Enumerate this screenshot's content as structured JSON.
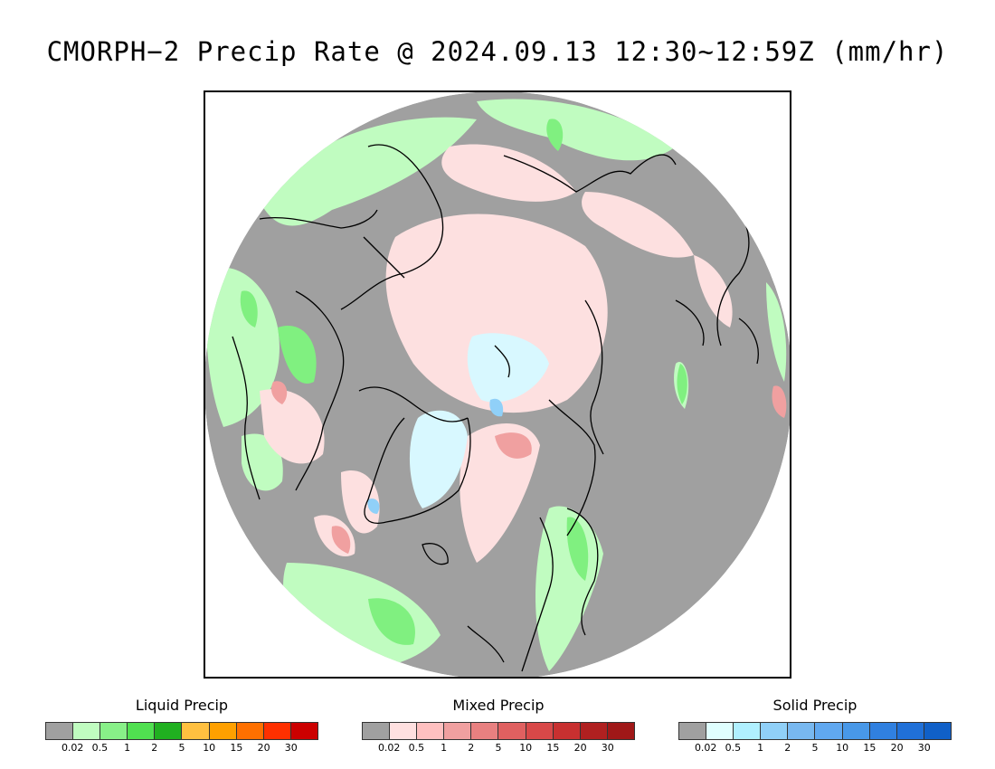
{
  "title": "CMORPH−2 Precip Rate @ 2024.09.13 12:30~12:59Z (mm/hr)",
  "map": {
    "projection": "north-polar-stereographic",
    "ocean_color": "#a0a0a0",
    "coastline_color": "#000000",
    "regions": [
      {
        "name": "light-liquid",
        "color": "#c0fcc0"
      },
      {
        "name": "moderate-liquid",
        "color": "#80f080"
      },
      {
        "name": "light-mixed",
        "color": "#fde0e0"
      },
      {
        "name": "moderate-mixed",
        "color": "#f0a0a0"
      },
      {
        "name": "light-solid",
        "color": "#d8f8ff"
      },
      {
        "name": "moderate-solid",
        "color": "#90d0f8"
      }
    ]
  },
  "legends": [
    {
      "title": "Liquid Precip",
      "colors": [
        "#a0a0a0",
        "#c0fcc0",
        "#88f088",
        "#50e050",
        "#20b020",
        "#ffc040",
        "#ffa000",
        "#ff7000",
        "#ff3000",
        "#cc0000"
      ],
      "ticks": [
        "0.02",
        "0.5",
        "1",
        "2",
        "5",
        "10",
        "15",
        "20",
        "30"
      ]
    },
    {
      "title": "Mixed Precip",
      "colors": [
        "#a0a0a0",
        "#ffe0e0",
        "#ffc0c0",
        "#f0a0a0",
        "#e88080",
        "#e06060",
        "#d84848",
        "#c83030",
        "#b02020",
        "#a01818"
      ],
      "ticks": [
        "0.02",
        "0.5",
        "1",
        "2",
        "5",
        "10",
        "15",
        "20",
        "30"
      ]
    },
    {
      "title": "Solid Precip",
      "colors": [
        "#a0a0a0",
        "#e0ffff",
        "#b0f0ff",
        "#90d0f8",
        "#78b8f0",
        "#60a8f0",
        "#4898e8",
        "#3080e0",
        "#2070d8",
        "#1060c8"
      ],
      "ticks": [
        "0.02",
        "0.5",
        "1",
        "2",
        "5",
        "10",
        "15",
        "20",
        "30"
      ]
    }
  ]
}
